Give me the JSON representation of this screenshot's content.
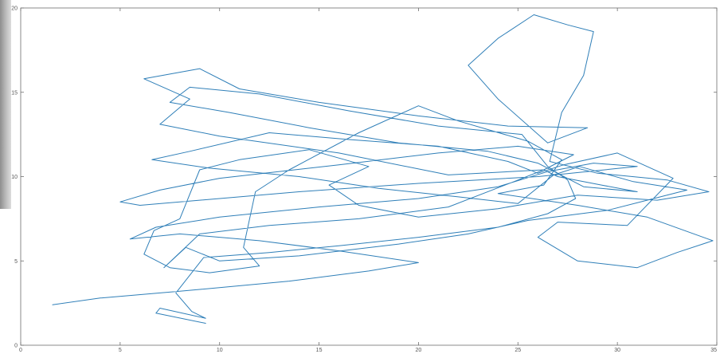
{
  "chart_data": {
    "type": "line",
    "title": "",
    "xlabel": "",
    "ylabel": "",
    "xlim": [
      0,
      35
    ],
    "ylim": [
      0,
      20
    ],
    "xticks": [
      0,
      5,
      10,
      15,
      20,
      25,
      30,
      35
    ],
    "yticks": [
      0,
      5,
      10,
      15,
      20
    ],
    "grid": false,
    "legend": "none",
    "colors": {
      "series": "#2f7fb8",
      "axes": "#6e6e6e",
      "background": "#ffffff",
      "left_strip": "#a8a8a8"
    },
    "series": [
      {
        "values_note": "single trajectory traced by a moving point",
        "points": [
          [
            1.6,
            2.4
          ],
          [
            4.0,
            2.8
          ],
          [
            8.0,
            3.2
          ],
          [
            13.5,
            3.8
          ],
          [
            17.5,
            4.4
          ],
          [
            20.0,
            4.9
          ],
          [
            16.0,
            5.6
          ],
          [
            12.0,
            6.2
          ],
          [
            8.0,
            6.6
          ],
          [
            5.5,
            6.3
          ],
          [
            6.8,
            7.0
          ],
          [
            10.0,
            7.6
          ],
          [
            15.0,
            8.2
          ],
          [
            20.0,
            8.7
          ],
          [
            24.0,
            9.4
          ],
          [
            26.5,
            10.3
          ],
          [
            28.8,
            10.8
          ],
          [
            31.0,
            10.6
          ],
          [
            26.0,
            10.0
          ],
          [
            20.0,
            9.6
          ],
          [
            14.0,
            9.1
          ],
          [
            9.0,
            8.6
          ],
          [
            6.0,
            8.3
          ],
          [
            5.0,
            8.5
          ],
          [
            7.0,
            9.2
          ],
          [
            10.0,
            9.9
          ],
          [
            16.0,
            10.7
          ],
          [
            21.0,
            11.4
          ],
          [
            25.0,
            11.8
          ],
          [
            27.8,
            11.3
          ],
          [
            26.3,
            10.4
          ],
          [
            21.5,
            10.1
          ],
          [
            16.0,
            11.4
          ],
          [
            10.0,
            12.4
          ],
          [
            7.0,
            13.1
          ],
          [
            8.5,
            14.6
          ],
          [
            6.2,
            15.8
          ],
          [
            9.0,
            16.4
          ],
          [
            11.0,
            15.2
          ],
          [
            15.0,
            14.4
          ],
          [
            20.0,
            13.6
          ],
          [
            24.5,
            13.0
          ],
          [
            28.5,
            12.9
          ],
          [
            26.5,
            12.0
          ],
          [
            24.0,
            14.6
          ],
          [
            22.5,
            16.6
          ],
          [
            24.0,
            18.2
          ],
          [
            25.8,
            19.6
          ],
          [
            27.5,
            19.0
          ],
          [
            28.8,
            18.6
          ],
          [
            28.3,
            16.0
          ],
          [
            27.2,
            13.8
          ],
          [
            26.6,
            10.9
          ],
          [
            29.0,
            10.2
          ],
          [
            32.5,
            9.8
          ],
          [
            34.6,
            9.1
          ],
          [
            32.0,
            8.6
          ],
          [
            28.0,
            8.9
          ],
          [
            24.0,
            8.1
          ],
          [
            20.0,
            7.6
          ],
          [
            17.0,
            8.3
          ],
          [
            15.5,
            9.5
          ],
          [
            17.5,
            10.6
          ],
          [
            14.5,
            11.6
          ],
          [
            11.0,
            11.0
          ],
          [
            9.0,
            10.4
          ],
          [
            8.0,
            7.5
          ],
          [
            6.7,
            6.8
          ],
          [
            6.2,
            5.4
          ],
          [
            7.5,
            4.6
          ],
          [
            9.5,
            4.3
          ],
          [
            12.0,
            4.7
          ],
          [
            11.2,
            5.8
          ],
          [
            11.8,
            9.1
          ],
          [
            13.5,
            10.4
          ],
          [
            17.0,
            12.6
          ],
          [
            20.0,
            14.2
          ],
          [
            22.0,
            13.3
          ],
          [
            25.5,
            12.1
          ],
          [
            27.2,
            11.0
          ],
          [
            26.3,
            9.5
          ],
          [
            24.0,
            9.0
          ],
          [
            28.0,
            8.3
          ],
          [
            31.5,
            7.6
          ],
          [
            34.8,
            6.2
          ],
          [
            33.0,
            5.5
          ],
          [
            31.0,
            4.6
          ],
          [
            28.0,
            5.0
          ],
          [
            26.0,
            6.4
          ],
          [
            27.0,
            7.3
          ],
          [
            30.5,
            7.1
          ],
          [
            32.8,
            9.9
          ],
          [
            30.0,
            11.4
          ],
          [
            27.3,
            10.7
          ],
          [
            26.0,
            10.2
          ],
          [
            24.5,
            10.9
          ],
          [
            21.0,
            11.8
          ],
          [
            16.5,
            12.2
          ],
          [
            12.5,
            12.6
          ],
          [
            8.5,
            11.5
          ],
          [
            6.6,
            11.0
          ],
          [
            9.5,
            10.5
          ],
          [
            14.0,
            10.0
          ],
          [
            18.0,
            9.3
          ],
          [
            22.0,
            8.8
          ],
          [
            25.0,
            8.4
          ],
          [
            26.8,
            10.1
          ],
          [
            28.1,
            10.6
          ],
          [
            30.8,
            9.7
          ],
          [
            33.5,
            9.2
          ],
          [
            29.5,
            8.0
          ],
          [
            25.5,
            7.4
          ],
          [
            22.5,
            6.6
          ],
          [
            19.0,
            6.0
          ],
          [
            14.0,
            5.3
          ],
          [
            10.0,
            5.0
          ],
          [
            8.3,
            5.8
          ],
          [
            7.2,
            4.6
          ],
          [
            9.0,
            6.6
          ],
          [
            12.5,
            7.1
          ],
          [
            17.0,
            7.5
          ],
          [
            21.5,
            8.2
          ],
          [
            24.8,
            9.7
          ],
          [
            26.3,
            10.4
          ],
          [
            27.0,
            10.0
          ],
          [
            29.2,
            9.5
          ],
          [
            31.0,
            9.1
          ],
          [
            28.3,
            9.4
          ],
          [
            26.0,
            10.8
          ],
          [
            23.5,
            11.5
          ],
          [
            19.0,
            12.0
          ],
          [
            14.5,
            12.9
          ],
          [
            10.5,
            13.8
          ],
          [
            7.5,
            14.4
          ],
          [
            8.5,
            15.3
          ],
          [
            12.0,
            14.9
          ],
          [
            16.5,
            13.9
          ],
          [
            21.0,
            13.0
          ],
          [
            25.2,
            12.5
          ],
          [
            26.5,
            10.6
          ],
          [
            27.5,
            9.8
          ],
          [
            27.9,
            8.7
          ],
          [
            26.5,
            7.8
          ],
          [
            24.0,
            7.0
          ],
          [
            20.0,
            6.4
          ],
          [
            16.0,
            5.9
          ],
          [
            12.5,
            5.5
          ],
          [
            9.2,
            5.2
          ],
          [
            7.8,
            3.1
          ],
          [
            8.6,
            2.0
          ],
          [
            9.3,
            1.6
          ],
          [
            7.0,
            2.2
          ],
          [
            6.8,
            1.9
          ],
          [
            9.3,
            1.3
          ]
        ]
      }
    ]
  }
}
